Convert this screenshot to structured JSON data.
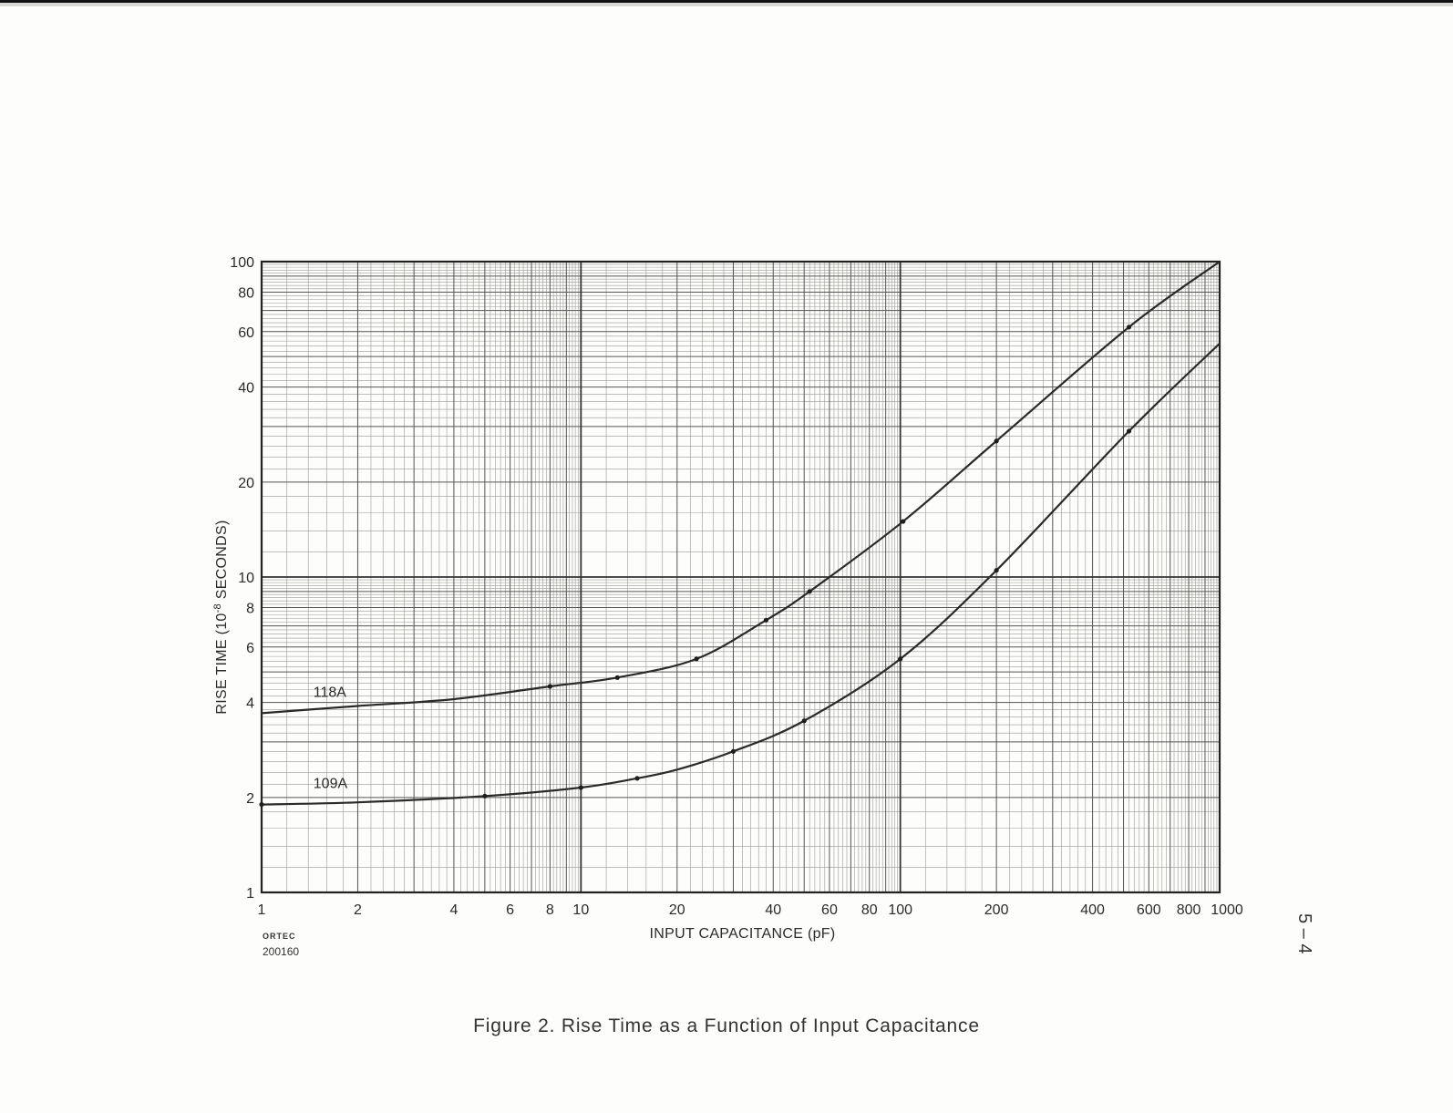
{
  "chart_data": {
    "type": "line",
    "xlabel": "INPUT CAPACITANCE (pF)",
    "ylabel": "RISE TIME (10",
    "ylabel_exponent": "-8",
    "ylabel_suffix": " SECONDS)",
    "x_scale": "log",
    "y_scale": "log",
    "xlim": [
      1,
      1000
    ],
    "ylim": [
      1,
      100
    ],
    "grid": true,
    "x_ticks": [
      "1",
      "2",
      "4",
      "6",
      "8",
      "10",
      "20",
      "40",
      "60",
      "80",
      "100",
      "200",
      "400",
      "600",
      "800",
      "1000"
    ],
    "y_ticks": [
      "1",
      "2",
      "4",
      "6",
      "8",
      "10",
      "20",
      "40",
      "60",
      "80",
      "100"
    ],
    "series": [
      {
        "name": "118A",
        "x": [
          1,
          2,
          4,
          8,
          13,
          23,
          38,
          52,
          102,
          200,
          520,
          1000
        ],
        "y": [
          3.7,
          3.9,
          4.1,
          4.5,
          4.8,
          5.5,
          7.3,
          9.0,
          15.0,
          27.0,
          62.0,
          100.0
        ],
        "markers": [
          false,
          false,
          false,
          true,
          true,
          true,
          true,
          true,
          true,
          true,
          true,
          false
        ]
      },
      {
        "name": "109A",
        "x": [
          1,
          2,
          5,
          10,
          15,
          20,
          30,
          50,
          100,
          200,
          520,
          1000
        ],
        "y": [
          1.9,
          1.93,
          2.02,
          2.15,
          2.3,
          2.45,
          2.8,
          3.5,
          5.5,
          10.5,
          29.0,
          55.0
        ],
        "markers": [
          true,
          false,
          true,
          true,
          true,
          false,
          true,
          true,
          true,
          true,
          true,
          false
        ]
      }
    ]
  },
  "logo": "ORTEC",
  "drawing_number": "200160",
  "caption": "Figure 2.   Rise Time as a Function of Input Capacitance",
  "page_number": "5 – 4"
}
